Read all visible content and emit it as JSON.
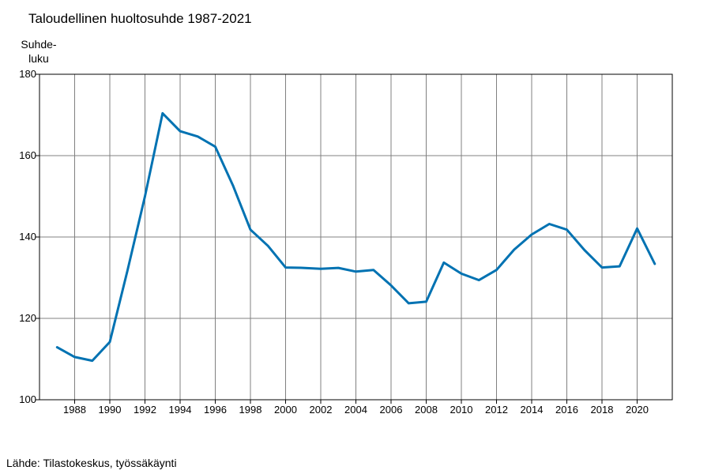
{
  "title": "Taloudellinen huoltosuhde 1987-2021",
  "y_unit_label": [
    "Suhde-",
    "luku"
  ],
  "source": "Lähde: Tilastokeskus, työssäkäynti",
  "colors": {
    "line": "#0072b2",
    "grid": "#808080",
    "axis": "#000000"
  },
  "chart_data": {
    "type": "line",
    "title": "Taloudellinen huoltosuhde 1987-2021",
    "ylabel": "Suhdeluku",
    "xlabel": "",
    "xlim": [
      1986,
      2022
    ],
    "ylim": [
      100,
      180
    ],
    "x_ticks": [
      1988,
      1990,
      1992,
      1994,
      1996,
      1998,
      2000,
      2002,
      2004,
      2006,
      2008,
      2010,
      2012,
      2014,
      2016,
      2018,
      2020
    ],
    "y_ticks": [
      100,
      120,
      140,
      160,
      180
    ],
    "grid": true,
    "legend": "none",
    "series": [
      {
        "x": [
          1987,
          1988,
          1989,
          1990,
          1991,
          1992,
          1993,
          1994,
          1995,
          1996,
          1997,
          1998,
          1999,
          2000,
          2001,
          2002,
          2003,
          2004,
          2005,
          2006,
          2007,
          2008,
          2009,
          2010,
          2011,
          2012,
          2013,
          2014,
          2015,
          2016,
          2017,
          2018,
          2019,
          2020,
          2021
        ],
        "y": [
          112.9,
          110.5,
          109.6,
          114.2,
          131.7,
          150.0,
          170.4,
          166.0,
          164.7,
          162.2,
          152.7,
          141.8,
          137.8,
          132.5,
          132.4,
          132.2,
          132.4,
          131.5,
          131.9,
          128.1,
          123.7,
          124.1,
          133.7,
          131.0,
          129.4,
          131.9,
          136.9,
          140.6,
          143.2,
          141.8,
          136.8,
          132.5,
          132.8,
          142.1,
          133.4
        ]
      }
    ]
  }
}
